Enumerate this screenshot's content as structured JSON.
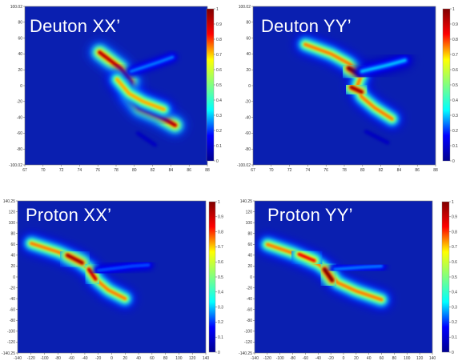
{
  "colormap": {
    "name": "jet",
    "background": "#0a1fb0",
    "stops": [
      "#00008f",
      "#0000ff",
      "#00ffff",
      "#80ff80",
      "#ffff00",
      "#ff0000",
      "#800000"
    ]
  },
  "chart_data": [
    {
      "type": "heatmap",
      "title": "Deuton XX’",
      "xlim": [
        67,
        88
      ],
      "ylim": [
        -100.02,
        100.02
      ],
      "xticks": [
        "67",
        "70",
        "72",
        "74",
        "76",
        "78",
        "80",
        "82",
        "84",
        "86",
        "88"
      ],
      "yticks": [
        "100.02",
        "80",
        "60",
        "40",
        "20",
        "0",
        "-20",
        "-40",
        "-60",
        "-80",
        "-100.02"
      ],
      "colorbar": {
        "range": [
          0,
          1
        ],
        "ticks": [
          "1",
          "0.9",
          "0.8",
          "0.7",
          "0.6",
          "0.5",
          "0.4",
          "0.3",
          "0.2",
          "0.1",
          "0"
        ]
      },
      "ridges": [
        {
          "points": [
            [
              75.6,
              42
            ],
            [
              78.0,
              22
            ],
            [
              79.2,
              5
            ],
            [
              79.0,
              -12
            ],
            [
              80.2,
              -28
            ],
            [
              82.4,
              -38
            ],
            [
              84.3,
              -50
            ]
          ],
          "peak": 0.92
        },
        {
          "points": [
            [
              77.6,
              8
            ],
            [
              79.0,
              -10
            ],
            [
              80.6,
              -20
            ],
            [
              83.0,
              -30
            ]
          ],
          "peak": 0.72
        },
        {
          "points": [
            [
              79.2,
              18
            ],
            [
              82.5,
              30
            ],
            [
              84.0,
              36
            ]
          ],
          "peak": 0.25
        },
        {
          "points": [
            [
              80.0,
              -60
            ],
            [
              82.0,
              -75
            ]
          ],
          "peak": 0.08
        }
      ]
    },
    {
      "type": "heatmap",
      "title": "Deuton YY’",
      "xlim": [
        67,
        88
      ],
      "ylim": [
        -100.02,
        100.02
      ],
      "xticks": [
        "67",
        "70",
        "72",
        "74",
        "76",
        "78",
        "80",
        "82",
        "84",
        "86",
        "88"
      ],
      "yticks": [
        "100.02",
        "80",
        "60",
        "40",
        "20",
        "0",
        "-20",
        "-40",
        "-60",
        "-80",
        "-100.02"
      ],
      "colorbar": {
        "range": [
          0,
          1
        ],
        "ticks": [
          "1",
          "0.9",
          "0.8",
          "0.7",
          "0.6",
          "0.5",
          "0.4",
          "0.3",
          "0.2",
          "0.1",
          "0"
        ]
      },
      "ridges": [
        {
          "points": [
            [
              73.0,
              52
            ],
            [
              76.0,
              40
            ],
            [
              78.0,
              28
            ],
            [
              79.5,
              14
            ],
            [
              79.0,
              0
            ],
            [
              79.5,
              -14
            ],
            [
              81.0,
              -28
            ],
            [
              83.0,
              -42
            ]
          ],
          "peak": 0.75
        },
        {
          "points": [
            [
              78.0,
              22
            ],
            [
              79.3,
              14
            ]
          ],
          "peak": 1.0
        },
        {
          "points": [
            [
              78.3,
              -2
            ],
            [
              79.5,
              -8
            ]
          ],
          "peak": 0.95
        },
        {
          "points": [
            [
              79.5,
              18
            ],
            [
              82.5,
              26
            ],
            [
              84.5,
              32
            ]
          ],
          "peak": 0.3
        },
        {
          "points": [
            [
              80.0,
              -58
            ],
            [
              82.5,
              -72
            ]
          ],
          "peak": 0.08
        }
      ]
    },
    {
      "type": "heatmap",
      "title": "Proton XX’",
      "xlim": [
        -140.25,
        140.25
      ],
      "ylim": [
        -140.25,
        140.25
      ],
      "xticks": [
        "-140",
        "-120",
        "-100",
        "-80",
        "-60",
        "-40",
        "-20",
        "0",
        "20",
        "40",
        "60",
        "80",
        "100",
        "120",
        "140"
      ],
      "yticks": [
        "140.25",
        "120",
        "100",
        "80",
        "60",
        "40",
        "20",
        "0",
        "-20",
        "-40",
        "-60",
        "-80",
        "-100",
        "-120",
        "-140.25"
      ],
      "colorbar": {
        "range": [
          0,
          1
        ],
        "ticks": [
          "1",
          "0.9",
          "0.8",
          "0.7",
          "0.6",
          "0.5",
          "0.4",
          "0.3",
          "0.2",
          "0.1",
          "0"
        ]
      },
      "ridges": [
        {
          "points": [
            [
              -120,
              62
            ],
            [
              -80,
              46
            ],
            [
              -50,
              30
            ],
            [
              -30,
              12
            ],
            [
              -22,
              -6
            ],
            [
              -5,
              -24
            ],
            [
              20,
              -40
            ]
          ],
          "peak": 0.75
        },
        {
          "points": [
            [
              -66,
              40
            ],
            [
              -44,
              26
            ]
          ],
          "peak": 0.95
        },
        {
          "points": [
            [
              -34,
              14
            ],
            [
              -24,
              -4
            ]
          ],
          "peak": 0.9
        },
        {
          "points": [
            [
              -20,
              12
            ],
            [
              30,
              20
            ],
            [
              55,
              22
            ]
          ],
          "peak": 0.22
        }
      ]
    },
    {
      "type": "heatmap",
      "title": "Proton YY’",
      "xlim": [
        -140.25,
        140.25
      ],
      "ylim": [
        -140.25,
        140.25
      ],
      "xticks": [
        "-140",
        "-120",
        "-100",
        "-80",
        "-60",
        "-40",
        "-20",
        "0",
        "20",
        "40",
        "60",
        "80",
        "100",
        "120",
        "140"
      ],
      "yticks": [
        "140.25",
        "120",
        "100",
        "80",
        "60",
        "40",
        "20",
        "0",
        "-20",
        "-40",
        "-60",
        "-80",
        "-100",
        "-120",
        "-140.25"
      ],
      "colorbar": {
        "range": [
          0,
          1
        ],
        "ticks": [
          "1",
          "0.9",
          "0.8",
          "0.7",
          "0.6",
          "0.5",
          "0.4",
          "0.3",
          "0.2",
          "0.1",
          "0"
        ]
      },
      "ridges": [
        {
          "points": [
            [
              -120,
              60
            ],
            [
              -80,
              44
            ],
            [
              -40,
              24
            ],
            [
              -20,
              6
            ],
            [
              -10,
              -10
            ],
            [
              20,
              -26
            ],
            [
              60,
              -42
            ]
          ],
          "peak": 0.75
        },
        {
          "points": [
            [
              -30,
              14
            ],
            [
              -18,
              -6
            ]
          ],
          "peak": 1.0
        },
        {
          "points": [
            [
              -70,
              42
            ],
            [
              -46,
              30
            ]
          ],
          "peak": 0.85
        },
        {
          "points": [
            [
              -14,
              14
            ],
            [
              30,
              18
            ],
            [
              60,
              20
            ]
          ],
          "peak": 0.25
        }
      ]
    }
  ]
}
